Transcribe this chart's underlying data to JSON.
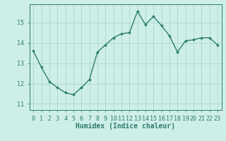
{
  "x": [
    0,
    1,
    2,
    3,
    4,
    5,
    6,
    7,
    8,
    9,
    10,
    11,
    12,
    13,
    14,
    15,
    16,
    17,
    18,
    19,
    20,
    21,
    22,
    23
  ],
  "y": [
    13.6,
    12.8,
    12.1,
    11.8,
    11.55,
    11.45,
    11.8,
    12.2,
    13.55,
    13.9,
    14.25,
    14.45,
    14.5,
    15.55,
    14.9,
    15.3,
    14.85,
    14.35,
    13.55,
    14.1,
    14.15,
    14.25,
    14.25,
    13.9
  ],
  "line_color": "#2d7d6e",
  "marker": "D",
  "marker_size": 2.0,
  "line_width": 1.0,
  "bg_color": "#ceeee8",
  "grid_color": "#a8d8d0",
  "axis_color": "#2d7d6e",
  "xlabel": "Humidex (Indice chaleur)",
  "xlabel_fontsize": 7,
  "tick_fontsize": 6,
  "yticks": [
    11,
    12,
    13,
    14,
    15
  ],
  "ylim": [
    10.7,
    15.9
  ],
  "xlim": [
    -0.5,
    23.5
  ]
}
